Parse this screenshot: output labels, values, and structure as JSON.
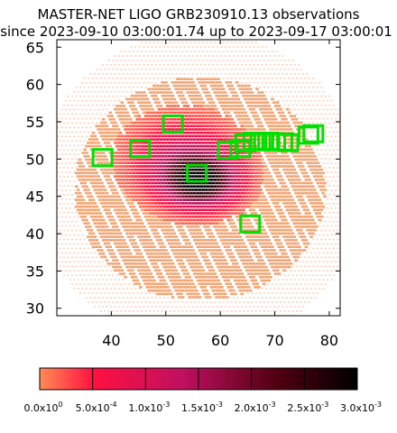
{
  "chart_data": {
    "type": "heatmap",
    "title": "MASTER-NET LIGO GRB230910.13 observations",
    "subtitle": "since 2023-09-10 03:00:01.74 up to 2023-09-17 03:00:01",
    "xlabel": "",
    "ylabel": "",
    "xlim": [
      30,
      82
    ],
    "ylim": [
      29,
      66
    ],
    "xticks": [
      "40",
      "50",
      "60",
      "70",
      "80"
    ],
    "xtick_values": [
      40,
      50,
      60,
      70,
      80
    ],
    "yticks": [
      "30",
      "35",
      "40",
      "45",
      "50",
      "55",
      "60",
      "65"
    ],
    "ytick_values": [
      30,
      35,
      40,
      45,
      50,
      55,
      60,
      65
    ],
    "grid": false,
    "probability_map": {
      "center": [
        56,
        47
      ],
      "outer_region": {
        "x_range": [
          33,
          79
        ],
        "y_range": [
          31,
          61
        ]
      },
      "peak_value": 0.003
    },
    "colorbar": {
      "min": 0.0,
      "max": 0.003,
      "labels": [
        "0.0x10",
        "5.0x10",
        "1.0x10",
        "1.5x10",
        "2.0x10",
        "2.5x10",
        "3.0x10"
      ],
      "exponents": [
        "0",
        "-4",
        "-3",
        "-3",
        "-3",
        "-3",
        "-3"
      ],
      "values": [
        0,
        0.0005,
        0.001,
        0.0015,
        0.002,
        0.0025,
        0.003
      ],
      "colors": [
        "#ff8c55",
        "#ff1040",
        "#c01060",
        "#500010",
        "#000000"
      ]
    },
    "fields": [
      {
        "x": 38.3,
        "y": 50.2
      },
      {
        "x": 45.2,
        "y": 51.4
      },
      {
        "x": 51.2,
        "y": 54.7
      },
      {
        "x": 55.6,
        "y": 48.1
      },
      {
        "x": 61.3,
        "y": 51.2
      },
      {
        "x": 63.6,
        "y": 51.4
      },
      {
        "x": 64.5,
        "y": 52.2
      },
      {
        "x": 66.0,
        "y": 52.4
      },
      {
        "x": 67.3,
        "y": 52.3
      },
      {
        "x": 68.7,
        "y": 52.4
      },
      {
        "x": 70.0,
        "y": 52.3
      },
      {
        "x": 71.3,
        "y": 52.3
      },
      {
        "x": 72.4,
        "y": 52.2
      },
      {
        "x": 76.1,
        "y": 53.2
      },
      {
        "x": 77.0,
        "y": 53.4
      },
      {
        "x": 65.4,
        "y": 41.3
      }
    ],
    "field_color": "#00e000"
  }
}
